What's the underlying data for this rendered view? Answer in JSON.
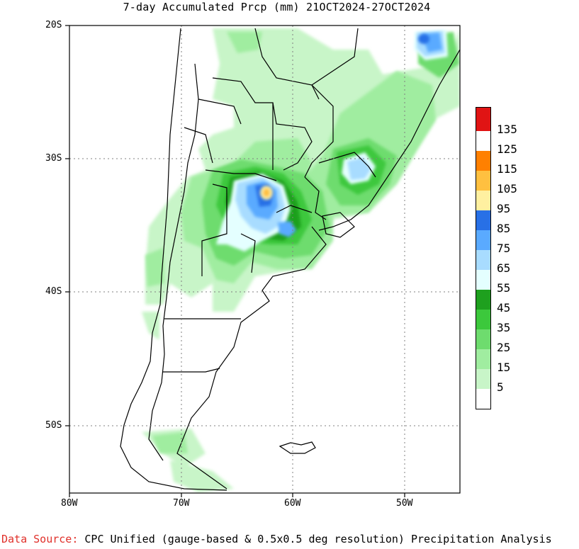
{
  "title": "7-day Accumulated Prcp (mm) 21OCT2024-27OCT2024",
  "lat_labels": [
    "20S",
    "30S",
    "40S",
    "50S"
  ],
  "lon_labels": [
    "80W",
    "70W",
    "60W",
    "50W"
  ],
  "legend": {
    "labels": [
      "135",
      "125",
      "115",
      "105",
      "95",
      "85",
      "75",
      "65",
      "55",
      "45",
      "35",
      "25",
      "15",
      "5"
    ],
    "colors": [
      "#ffffff",
      "#c8f5c8",
      "#a0eda0",
      "#6edc6e",
      "#3cc83c",
      "#1ea01e",
      "#e4ffff",
      "#a8dcff",
      "#5aaaff",
      "#2870e6",
      "#fff0a0",
      "#ffc040",
      "#ff8000",
      "#e01414"
    ]
  },
  "source": {
    "prefix": "Data Source:",
    "text": " CPC Unified (gauge-based & 0.5x0.5 deg resolution) Precipitation Analysis"
  }
}
